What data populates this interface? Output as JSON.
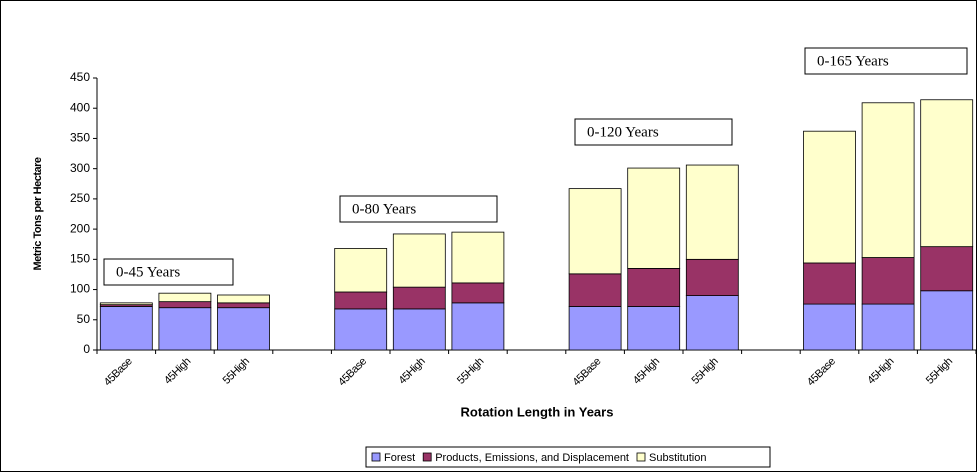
{
  "chart_data": {
    "type": "stacked-bar",
    "xlabel": "Rotation Length in Years",
    "ylabel": "Metric Tons per Hectare",
    "categories": [
      "45Base",
      "45High",
      "55High",
      null,
      "45Base",
      "45High",
      "55High",
      null,
      "45Base",
      "45High",
      "55High",
      null,
      "45Base",
      "45High",
      "55High"
    ],
    "series": [
      {
        "name": "Forest",
        "color": "#9999ff",
        "values": [
          72,
          70,
          70,
          null,
          68,
          68,
          78,
          null,
          72,
          72,
          90,
          null,
          76,
          76,
          98
        ]
      },
      {
        "name": "Products, Emissions, and Displacement",
        "color": "#993366",
        "values": [
          3,
          10,
          8,
          null,
          28,
          36,
          33,
          null,
          54,
          63,
          60,
          null,
          68,
          77,
          73
        ]
      },
      {
        "name": "Substitution",
        "color": "#ffffcc",
        "values": [
          3,
          14,
          13,
          null,
          72,
          88,
          84,
          null,
          141,
          166,
          156,
          null,
          218,
          256,
          243
        ]
      }
    ],
    "annotations": [
      "0-45 Years",
      "0-80 Years",
      "0-120 Years",
      "0-165 Years"
    ],
    "ylim": [
      0,
      450
    ],
    "yticks": [
      0,
      50,
      100,
      150,
      200,
      250,
      300,
      350,
      400,
      450
    ],
    "legend": "bottom"
  }
}
